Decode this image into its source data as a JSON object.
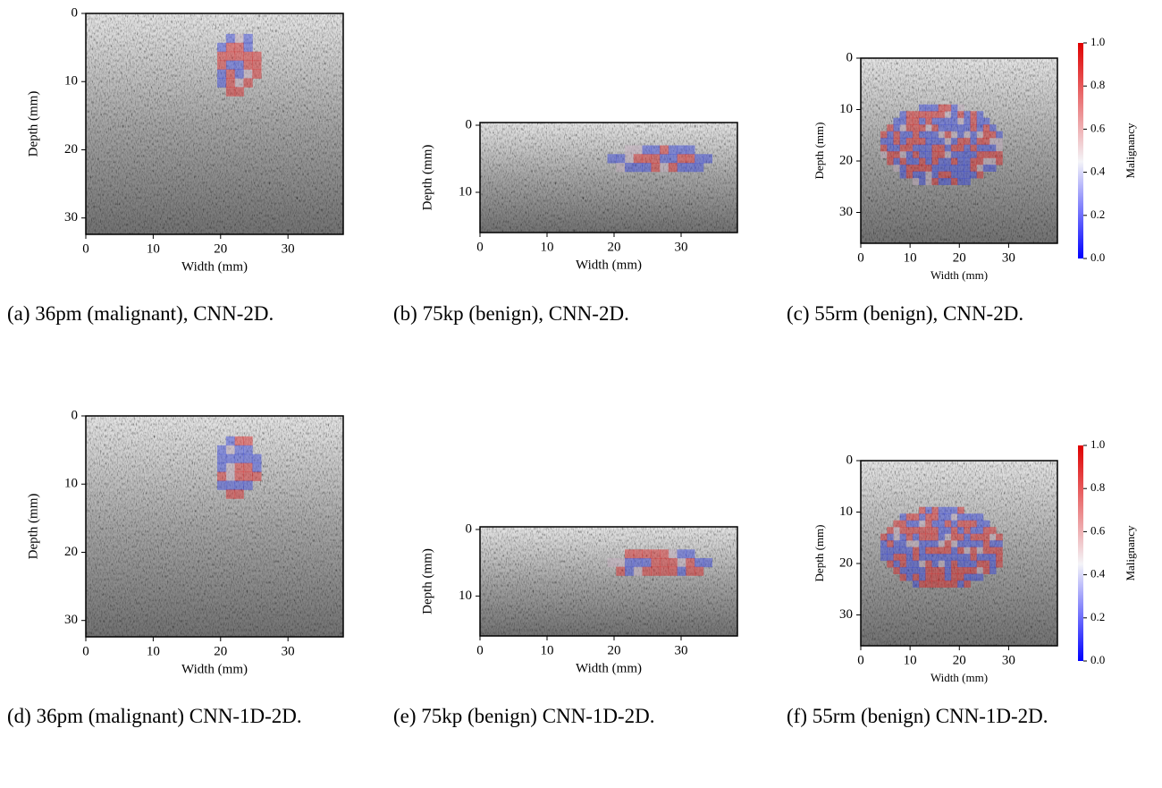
{
  "figures": [
    {
      "caption": "(a) 36pm (malignant), CNN-2D.",
      "plot": {
        "xlabel": "Width (mm)",
        "ylabel": "Depth (mm)",
        "xlim": [
          0,
          38.2
        ],
        "ylim": [
          32.4,
          0
        ],
        "xticks": [
          0,
          10,
          20,
          30
        ],
        "yticks": [
          0,
          10,
          20,
          30
        ]
      }
    },
    {
      "caption": "(b) 75kp (benign), CNN-2D.",
      "plot": {
        "xlabel": "Width (mm)",
        "ylabel": "Depth (mm)",
        "xlim": [
          0,
          38.4
        ],
        "ylim": [
          16,
          -0.4
        ],
        "xticks": [
          0,
          10,
          20,
          30
        ],
        "yticks": [
          0,
          10
        ]
      }
    },
    {
      "caption": "(c) 55rm (benign), CNN-2D.",
      "plot": {
        "xlabel": "Width (mm)",
        "ylabel": "Depth (mm)",
        "xlim": [
          0,
          39.9
        ],
        "ylim": [
          36,
          0
        ],
        "xticks": [
          0,
          10,
          20,
          30
        ],
        "yticks": [
          0,
          10,
          20,
          30
        ]
      },
      "colorbar": {
        "label": "Malignancy",
        "lim": [
          0,
          1
        ],
        "ticks": [
          {
            "value": 0,
            "label": "0.0"
          },
          {
            "value": 0.2,
            "label": "0.2"
          },
          {
            "value": 0.4,
            "label": "0.4"
          },
          {
            "value": 0.6,
            "label": "0.6"
          },
          {
            "value": 0.8,
            "label": "0.8"
          },
          {
            "value": 1,
            "label": "1.0"
          }
        ]
      }
    },
    {
      "caption": "(d) 36pm (malignant) CNN-1D-2D.",
      "plot": {
        "xlabel": "Width (mm)",
        "ylabel": "Depth (mm)",
        "xlim": [
          0,
          38.2
        ],
        "ylim": [
          32.4,
          0
        ],
        "xticks": [
          0,
          10,
          20,
          30
        ],
        "yticks": [
          0,
          10,
          20,
          30
        ]
      }
    },
    {
      "caption": "(e) 75kp (benign) CNN-1D-2D.",
      "plot": {
        "xlabel": "Width (mm)",
        "ylabel": "Depth (mm)",
        "xlim": [
          0,
          38.4
        ],
        "ylim": [
          16,
          -0.4
        ],
        "xticks": [
          0,
          10,
          20,
          30
        ],
        "yticks": [
          0,
          10
        ]
      }
    },
    {
      "caption": "(f) 55rm (benign) CNN-1D-2D.",
      "plot": {
        "xlabel": "Width (mm)",
        "ylabel": "Depth (mm)",
        "xlim": [
          0,
          39.9
        ],
        "ylim": [
          36,
          0
        ],
        "xticks": [
          0,
          10,
          20,
          30
        ],
        "yticks": [
          0,
          10,
          20,
          30
        ]
      },
      "colorbar": {
        "label": "Malignancy",
        "lim": [
          0,
          1
        ],
        "ticks": [
          {
            "value": 0,
            "label": "0.0"
          },
          {
            "value": 0.2,
            "label": "0.2"
          },
          {
            "value": 0.4,
            "label": "0.4"
          },
          {
            "value": 0.6,
            "label": "0.6"
          },
          {
            "value": 0.8,
            "label": "0.8"
          },
          {
            "value": 1,
            "label": "1.0"
          }
        ]
      }
    }
  ]
}
